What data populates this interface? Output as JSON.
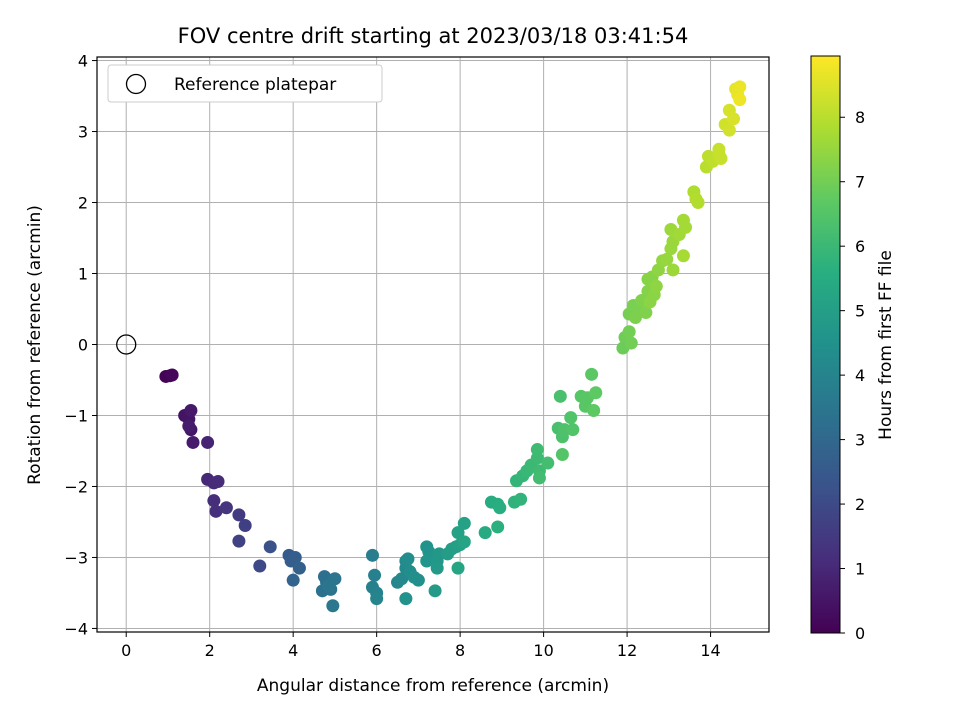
{
  "chart_data": {
    "type": "scatter",
    "title": "FOV centre drift starting at 2023/03/18 03:41:54",
    "xlabel": "Angular distance from reference (arcmin)",
    "ylabel": "Rotation from reference (arcmin)",
    "xlim": [
      -0.7,
      15.4
    ],
    "ylim": [
      -4.05,
      4.05
    ],
    "xticks": [
      "0",
      "2",
      "4",
      "6",
      "8",
      "10",
      "12",
      "14"
    ],
    "yticks": [
      "4",
      "3",
      "2",
      "1",
      "0",
      "−1",
      "−2",
      "−3",
      "−4"
    ],
    "grid": true,
    "colormap": "viridis",
    "colorbar": {
      "label": "Hours from first FF file",
      "range": [
        0,
        8.95
      ],
      "ticks": [
        "0",
        "1",
        "2",
        "3",
        "4",
        "5",
        "6",
        "7",
        "8"
      ]
    },
    "legend": {
      "position": "top-left",
      "entries": [
        "Reference platepar"
      ]
    },
    "reference_point": {
      "x": 0,
      "y": 0
    },
    "points": [
      {
        "x": 0.95,
        "y": -0.45,
        "h": 0.05
      },
      {
        "x": 1.05,
        "y": -0.44,
        "h": 0.1
      },
      {
        "x": 1.1,
        "y": -0.43,
        "h": 0.15
      },
      {
        "x": 1.4,
        "y": -1.0,
        "h": 0.45
      },
      {
        "x": 1.5,
        "y": -1.05,
        "h": 0.5
      },
      {
        "x": 1.55,
        "y": -1.2,
        "h": 0.55
      },
      {
        "x": 1.55,
        "y": -0.93,
        "h": 0.6
      },
      {
        "x": 1.6,
        "y": -1.38,
        "h": 0.65
      },
      {
        "x": 1.5,
        "y": -1.15,
        "h": 0.7
      },
      {
        "x": 1.95,
        "y": -1.38,
        "h": 0.9
      },
      {
        "x": 1.95,
        "y": -1.9,
        "h": 1.0
      },
      {
        "x": 2.1,
        "y": -1.95,
        "h": 1.05
      },
      {
        "x": 2.2,
        "y": -1.93,
        "h": 1.1
      },
      {
        "x": 2.1,
        "y": -2.2,
        "h": 1.15
      },
      {
        "x": 2.15,
        "y": -2.35,
        "h": 1.2
      },
      {
        "x": 2.4,
        "y": -2.3,
        "h": 1.35
      },
      {
        "x": 2.7,
        "y": -2.4,
        "h": 1.55
      },
      {
        "x": 2.85,
        "y": -2.55,
        "h": 1.65
      },
      {
        "x": 2.7,
        "y": -2.77,
        "h": 1.75
      },
      {
        "x": 3.2,
        "y": -3.12,
        "h": 2.0
      },
      {
        "x": 3.45,
        "y": -2.85,
        "h": 2.2
      },
      {
        "x": 3.9,
        "y": -2.97,
        "h": 2.5
      },
      {
        "x": 3.95,
        "y": -3.05,
        "h": 2.6
      },
      {
        "x": 4.05,
        "y": -3.0,
        "h": 2.65
      },
      {
        "x": 4.15,
        "y": -3.15,
        "h": 2.75
      },
      {
        "x": 4.0,
        "y": -3.32,
        "h": 2.85
      },
      {
        "x": 4.75,
        "y": -3.27,
        "h": 3.2
      },
      {
        "x": 4.8,
        "y": -3.35,
        "h": 3.3
      },
      {
        "x": 4.7,
        "y": -3.47,
        "h": 3.35
      },
      {
        "x": 4.9,
        "y": -3.45,
        "h": 3.4
      },
      {
        "x": 5.0,
        "y": -3.3,
        "h": 3.45
      },
      {
        "x": 4.85,
        "y": -3.4,
        "h": 3.5
      },
      {
        "x": 4.95,
        "y": -3.68,
        "h": 3.55
      },
      {
        "x": 5.9,
        "y": -2.97,
        "h": 3.8
      },
      {
        "x": 5.95,
        "y": -3.25,
        "h": 3.85
      },
      {
        "x": 5.9,
        "y": -3.42,
        "h": 3.9
      },
      {
        "x": 6.0,
        "y": -3.5,
        "h": 3.95
      },
      {
        "x": 6.0,
        "y": -3.58,
        "h": 4.0
      },
      {
        "x": 6.5,
        "y": -3.35,
        "h": 4.1
      },
      {
        "x": 6.6,
        "y": -3.3,
        "h": 4.15
      },
      {
        "x": 6.7,
        "y": -3.15,
        "h": 4.2
      },
      {
        "x": 6.7,
        "y": -3.05,
        "h": 4.25
      },
      {
        "x": 6.75,
        "y": -3.02,
        "h": 4.3
      },
      {
        "x": 6.8,
        "y": -3.2,
        "h": 4.35
      },
      {
        "x": 6.9,
        "y": -3.28,
        "h": 4.4
      },
      {
        "x": 7.0,
        "y": -3.32,
        "h": 4.45
      },
      {
        "x": 6.7,
        "y": -3.58,
        "h": 4.5
      },
      {
        "x": 7.2,
        "y": -2.85,
        "h": 4.55
      },
      {
        "x": 7.25,
        "y": -2.92,
        "h": 4.6
      },
      {
        "x": 7.2,
        "y": -3.05,
        "h": 4.65
      },
      {
        "x": 7.45,
        "y": -3.05,
        "h": 4.7
      },
      {
        "x": 7.5,
        "y": -2.95,
        "h": 4.75
      },
      {
        "x": 7.45,
        "y": -3.15,
        "h": 4.8
      },
      {
        "x": 7.4,
        "y": -3.47,
        "h": 4.85
      },
      {
        "x": 7.7,
        "y": -2.95,
        "h": 4.9
      },
      {
        "x": 7.8,
        "y": -2.88,
        "h": 4.95
      },
      {
        "x": 7.9,
        "y": -2.85,
        "h": 5.0
      },
      {
        "x": 8.0,
        "y": -2.82,
        "h": 5.05
      },
      {
        "x": 7.95,
        "y": -2.65,
        "h": 5.1
      },
      {
        "x": 8.1,
        "y": -2.52,
        "h": 5.15
      },
      {
        "x": 8.1,
        "y": -2.78,
        "h": 5.2
      },
      {
        "x": 7.95,
        "y": -3.15,
        "h": 5.25
      },
      {
        "x": 8.6,
        "y": -2.65,
        "h": 5.4
      },
      {
        "x": 8.75,
        "y": -2.22,
        "h": 5.5
      },
      {
        "x": 8.9,
        "y": -2.25,
        "h": 5.55
      },
      {
        "x": 8.95,
        "y": -2.3,
        "h": 5.6
      },
      {
        "x": 8.9,
        "y": -2.57,
        "h": 5.65
      },
      {
        "x": 9.3,
        "y": -2.22,
        "h": 5.75
      },
      {
        "x": 9.45,
        "y": -2.18,
        "h": 5.8
      },
      {
        "x": 9.35,
        "y": -1.92,
        "h": 5.85
      },
      {
        "x": 9.5,
        "y": -1.85,
        "h": 5.9
      },
      {
        "x": 9.6,
        "y": -1.78,
        "h": 5.95
      },
      {
        "x": 9.7,
        "y": -1.7,
        "h": 6.0
      },
      {
        "x": 9.85,
        "y": -1.6,
        "h": 6.05
      },
      {
        "x": 9.85,
        "y": -1.48,
        "h": 6.1
      },
      {
        "x": 9.9,
        "y": -1.78,
        "h": 6.1
      },
      {
        "x": 9.9,
        "y": -1.88,
        "h": 6.15
      },
      {
        "x": 10.1,
        "y": -1.67,
        "h": 6.2
      },
      {
        "x": 10.35,
        "y": -1.18,
        "h": 6.25
      },
      {
        "x": 10.4,
        "y": -0.73,
        "h": 6.3
      },
      {
        "x": 10.45,
        "y": -1.3,
        "h": 6.35
      },
      {
        "x": 10.5,
        "y": -1.2,
        "h": 6.4
      },
      {
        "x": 10.65,
        "y": -1.03,
        "h": 6.45
      },
      {
        "x": 10.7,
        "y": -1.2,
        "h": 6.45
      },
      {
        "x": 10.45,
        "y": -1.55,
        "h": 6.5
      },
      {
        "x": 10.9,
        "y": -0.73,
        "h": 6.55
      },
      {
        "x": 11.0,
        "y": -0.87,
        "h": 6.6
      },
      {
        "x": 11.05,
        "y": -0.75,
        "h": 6.6
      },
      {
        "x": 11.15,
        "y": -0.42,
        "h": 6.65
      },
      {
        "x": 11.25,
        "y": -0.68,
        "h": 6.7
      },
      {
        "x": 11.2,
        "y": -0.93,
        "h": 6.7
      },
      {
        "x": 11.9,
        "y": -0.05,
        "h": 6.9
      },
      {
        "x": 11.95,
        "y": 0.1,
        "h": 6.95
      },
      {
        "x": 12.05,
        "y": 0.18,
        "h": 7.0
      },
      {
        "x": 12.1,
        "y": 0.02,
        "h": 7.0
      },
      {
        "x": 12.05,
        "y": 0.43,
        "h": 7.05
      },
      {
        "x": 12.15,
        "y": 0.55,
        "h": 7.1
      },
      {
        "x": 12.25,
        "y": 0.5,
        "h": 7.1
      },
      {
        "x": 12.2,
        "y": 0.38,
        "h": 7.15
      },
      {
        "x": 12.35,
        "y": 0.62,
        "h": 7.2
      },
      {
        "x": 12.45,
        "y": 0.45,
        "h": 7.2
      },
      {
        "x": 12.5,
        "y": 0.75,
        "h": 7.25
      },
      {
        "x": 12.5,
        "y": 0.92,
        "h": 7.3
      },
      {
        "x": 12.6,
        "y": 0.95,
        "h": 7.3
      },
      {
        "x": 12.55,
        "y": 0.6,
        "h": 7.35
      },
      {
        "x": 12.65,
        "y": 0.7,
        "h": 7.35
      },
      {
        "x": 12.7,
        "y": 0.82,
        "h": 7.4
      },
      {
        "x": 12.75,
        "y": 1.05,
        "h": 7.4
      },
      {
        "x": 12.85,
        "y": 1.18,
        "h": 7.45
      },
      {
        "x": 12.95,
        "y": 1.2,
        "h": 7.5
      },
      {
        "x": 13.05,
        "y": 1.35,
        "h": 7.55
      },
      {
        "x": 13.1,
        "y": 1.45,
        "h": 7.55
      },
      {
        "x": 13.05,
        "y": 1.62,
        "h": 7.6
      },
      {
        "x": 13.1,
        "y": 1.05,
        "h": 7.6
      },
      {
        "x": 13.25,
        "y": 1.55,
        "h": 7.65
      },
      {
        "x": 13.35,
        "y": 1.75,
        "h": 7.7
      },
      {
        "x": 13.4,
        "y": 1.65,
        "h": 7.7
      },
      {
        "x": 13.35,
        "y": 1.25,
        "h": 7.75
      },
      {
        "x": 13.6,
        "y": 2.15,
        "h": 7.85
      },
      {
        "x": 13.65,
        "y": 2.05,
        "h": 7.9
      },
      {
        "x": 13.7,
        "y": 2.0,
        "h": 7.9
      },
      {
        "x": 13.9,
        "y": 2.5,
        "h": 8.0
      },
      {
        "x": 13.95,
        "y": 2.65,
        "h": 8.05
      },
      {
        "x": 14.05,
        "y": 2.58,
        "h": 8.1
      },
      {
        "x": 14.2,
        "y": 2.68,
        "h": 8.15
      },
      {
        "x": 14.25,
        "y": 2.62,
        "h": 8.2
      },
      {
        "x": 14.2,
        "y": 2.75,
        "h": 8.2
      },
      {
        "x": 14.35,
        "y": 3.1,
        "h": 8.3
      },
      {
        "x": 14.45,
        "y": 3.02,
        "h": 8.35
      },
      {
        "x": 14.45,
        "y": 3.3,
        "h": 8.4
      },
      {
        "x": 14.55,
        "y": 3.18,
        "h": 8.45
      },
      {
        "x": 14.6,
        "y": 3.6,
        "h": 8.6
      },
      {
        "x": 14.65,
        "y": 3.52,
        "h": 8.65
      },
      {
        "x": 14.7,
        "y": 3.63,
        "h": 8.7
      },
      {
        "x": 14.7,
        "y": 3.45,
        "h": 8.75
      }
    ]
  }
}
